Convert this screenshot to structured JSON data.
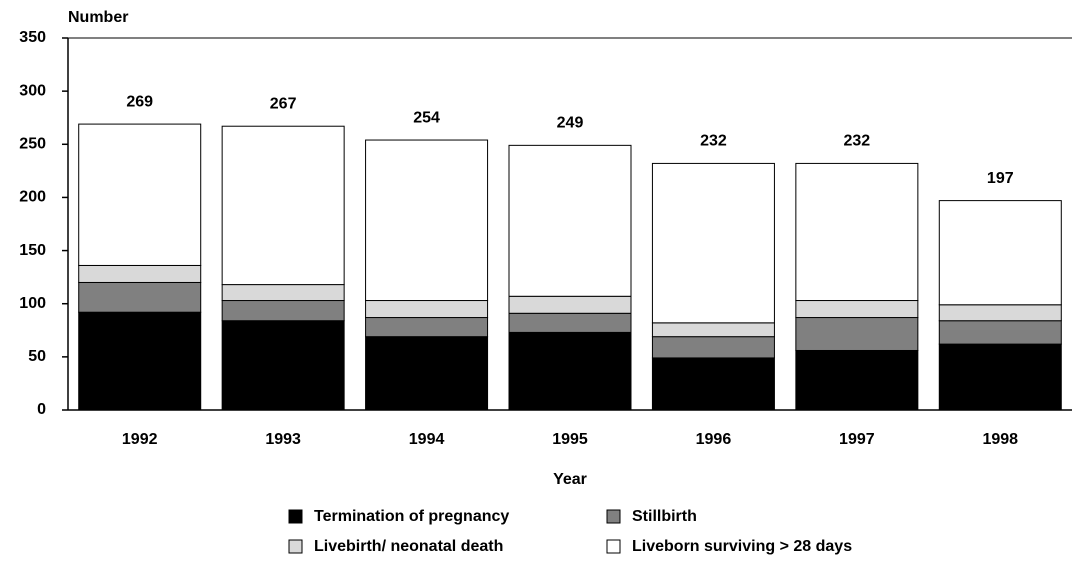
{
  "chart_data": {
    "type": "stacked_bar",
    "y_label": "Number",
    "x_label": "Year",
    "categories": [
      "1992",
      "1993",
      "1994",
      "1995",
      "1996",
      "1997",
      "1998"
    ],
    "series": [
      {
        "name": "Termination of pregnancy",
        "color": "#000000",
        "values": [
          92,
          84,
          69,
          73,
          49,
          56,
          62
        ]
      },
      {
        "name": "Stillbirth",
        "color": "#808080",
        "values": [
          28,
          19,
          18,
          18,
          20,
          31,
          22
        ]
      },
      {
        "name": "Livebirth/ neonatal death",
        "color": "#d9d9d9",
        "values": [
          16,
          15,
          16,
          16,
          13,
          16,
          15
        ]
      },
      {
        "name": "Liveborn surviving > 28 days",
        "color": "#ffffff",
        "values": [
          133,
          149,
          151,
          142,
          150,
          129,
          98
        ]
      }
    ],
    "total_labels": [
      269,
      267,
      254,
      249,
      232,
      232,
      197
    ],
    "ylim": [
      0,
      350
    ],
    "yticks": [
      0,
      50,
      100,
      150,
      200,
      250,
      300,
      350
    ]
  }
}
